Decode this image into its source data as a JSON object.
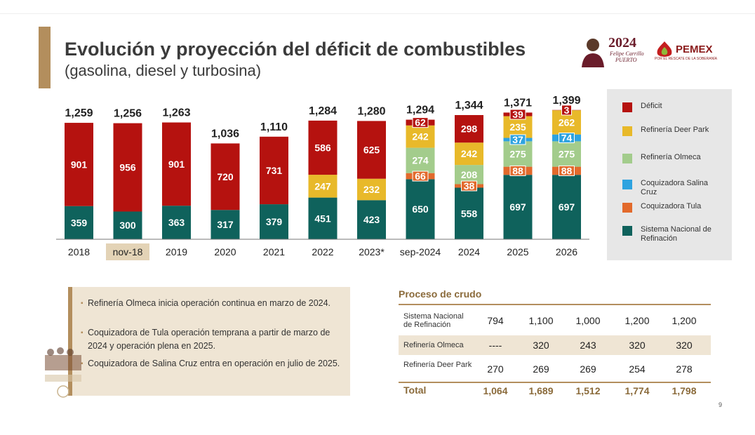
{
  "header": {
    "title": "Evolución y proyección del déficit de combustibles",
    "subtitle": "(gasolina, diesel y turbosina)"
  },
  "logos": {
    "year": "2024",
    "name_line1": "Felipe Carrillo",
    "name_line2": "PUERTO",
    "pemex": "PEMEX",
    "pemex_tag": "POR EL RESCATE DE LA SOBERANÍA"
  },
  "chart_data": {
    "type": "bar",
    "stacked": true,
    "title": "Evolución y proyección del déficit de combustibles",
    "categories": [
      "2018",
      "nov-18",
      "2019",
      "2020",
      "2021",
      "2022",
      "2023*",
      "sep-2024",
      "2024",
      "2025",
      "2026"
    ],
    "highlighted_category": "nov-18",
    "totals": [
      1259,
      1256,
      1263,
      1036,
      1110,
      1284,
      1280,
      1294,
      1344,
      1371,
      1399
    ],
    "totals_labels": [
      "1,259",
      "1,256",
      "1,263",
      "1,036",
      "1,110",
      "1,284",
      "1,280",
      "1,294",
      "1,344",
      "1,371",
      "1,399"
    ],
    "series": [
      {
        "name": "Sistema Nacional de Refinación",
        "color": "#0f625c",
        "values": [
          359,
          300,
          363,
          317,
          379,
          451,
          423,
          650,
          558,
          697,
          697
        ]
      },
      {
        "name": "Coquizadora Tula",
        "color": "#e26a2c",
        "values": [
          null,
          null,
          null,
          null,
          null,
          null,
          null,
          66,
          38,
          88,
          88
        ]
      },
      {
        "name": "Refinería Olmeca",
        "color": "#a3cc8c",
        "values": [
          null,
          null,
          null,
          null,
          null,
          null,
          null,
          274,
          208,
          275,
          275
        ]
      },
      {
        "name": "Coquizadora Salina Cruz",
        "color": "#2ea3e0",
        "values": [
          null,
          null,
          null,
          null,
          null,
          null,
          null,
          null,
          null,
          37,
          74
        ]
      },
      {
        "name": "Refinería Deer Park",
        "color": "#e8b92a",
        "values": [
          null,
          null,
          null,
          null,
          null,
          247,
          232,
          242,
          242,
          235,
          262
        ]
      },
      {
        "name": "Déficit",
        "color": "#b5120f",
        "values": [
          901,
          956,
          901,
          720,
          731,
          586,
          625,
          62,
          298,
          39,
          3
        ]
      }
    ],
    "legend": [
      "Déficit",
      "Refinería Deer Park",
      "Refinería Olmeca",
      "Coquizadora Salina Cruz",
      "Coquizadora Tula",
      "Sistema Nacional de Refinación"
    ],
    "legend_position": "right"
  },
  "legend": [
    {
      "label": "Déficit",
      "color": "#b5120f"
    },
    {
      "label": "Refinería Deer Park",
      "color": "#e8b92a"
    },
    {
      "label": "Refinería Olmeca",
      "color": "#a3cc8c"
    },
    {
      "label": "Coquizadora Salina Cruz",
      "color": "#2ea3e0"
    },
    {
      "label": "Coquizadora Tula",
      "color": "#e26a2c"
    },
    {
      "label": "Sistema Nacional de Refinación",
      "color": "#0f625c"
    }
  ],
  "notes": [
    "Refinería Olmeca inicia operación continua en marzo de 2024.",
    "Coquizadora de Tula operación temprana a partir de marzo de 2024 y operación plena en 2025.",
    "Coquizadora de Salina Cruz entra en operación en julio de 2025."
  ],
  "crudo": {
    "title": "Proceso de crudo",
    "rows": [
      {
        "label": "Sistema Nacional de Refinación",
        "values": [
          "794",
          "1,100",
          "1,000",
          "1,200",
          "1,200"
        ]
      },
      {
        "label": "Refinería Olmeca",
        "values": [
          "----",
          "320",
          "243",
          "320",
          "320"
        ]
      },
      {
        "label": "Refinería Deer Park",
        "values": [
          "270",
          "269",
          "269",
          "254",
          "278"
        ]
      }
    ],
    "total": {
      "label": "Total",
      "values": [
        "1,064",
        "1,689",
        "1,512",
        "1,774",
        "1,798"
      ]
    }
  },
  "page_number": "9",
  "colors": {
    "accent": "#b38e5d",
    "text": "#3b3b3b",
    "title_gold": "#8a6a3a"
  }
}
